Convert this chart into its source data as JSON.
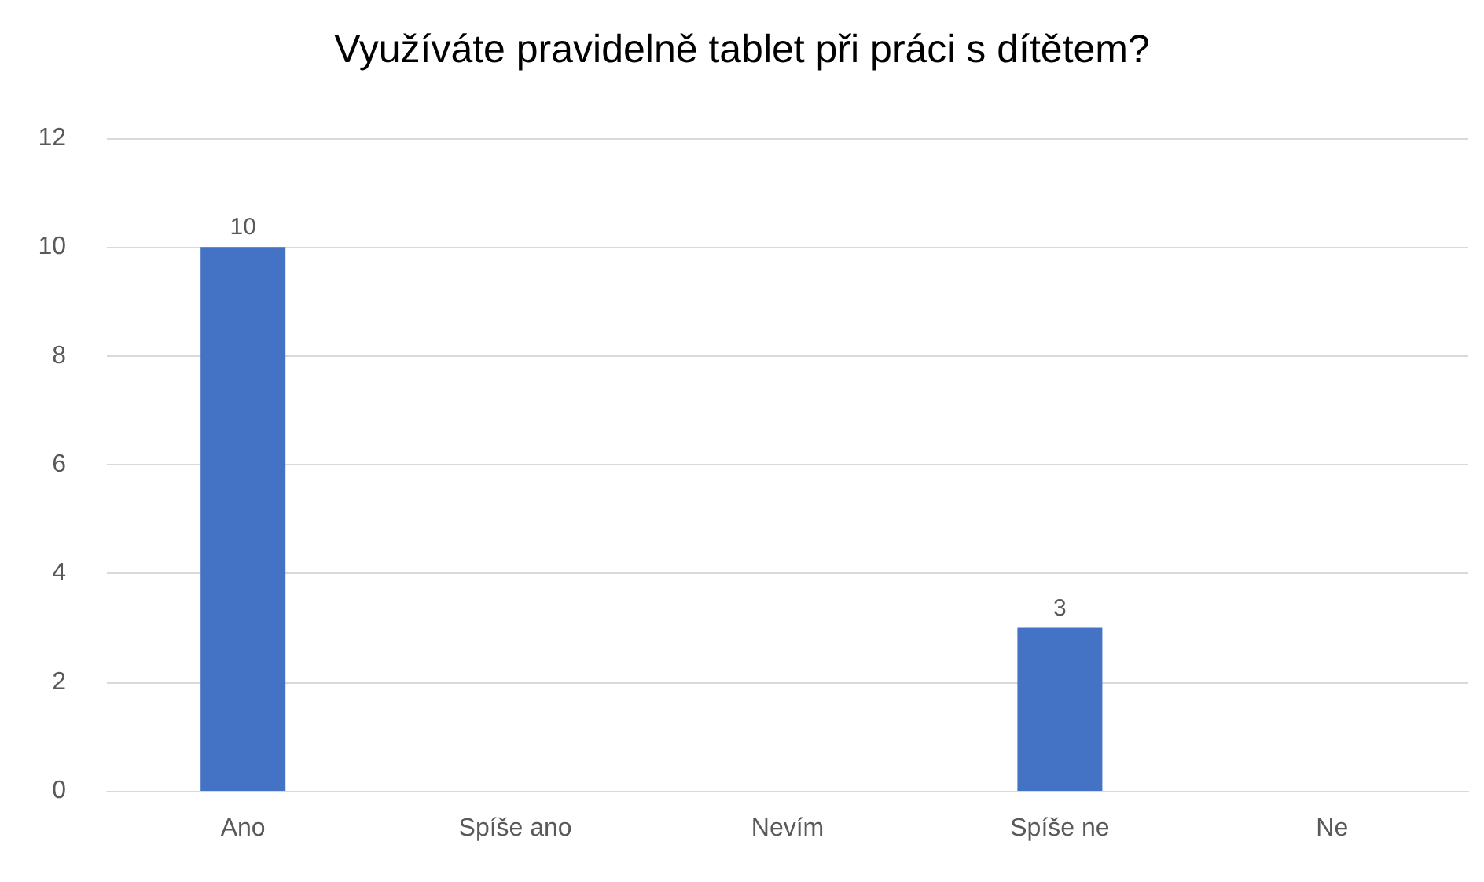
{
  "chart_data": {
    "type": "bar",
    "title": "Využíváte pravidelně tablet při práci s dítětem?",
    "categories": [
      "Ano",
      "Spíše ano",
      "Nevím",
      "Spíše ne",
      "Ne"
    ],
    "values": [
      10,
      0,
      0,
      3,
      0
    ],
    "color": "#4472c4",
    "value_labels": [
      "10",
      null,
      null,
      "3",
      null
    ],
    "ylim": [
      0,
      12
    ],
    "yticks": [
      0,
      2,
      4,
      6,
      8,
      10,
      12
    ],
    "grid": "y"
  }
}
